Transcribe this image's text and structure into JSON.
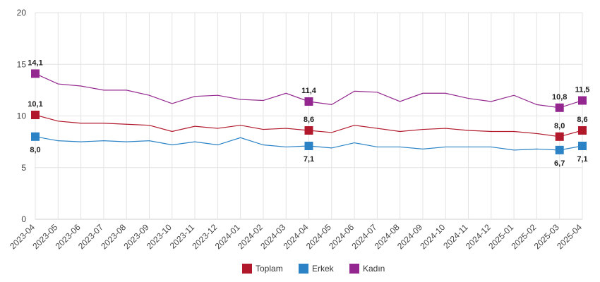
{
  "chart_data": {
    "type": "line",
    "title": "",
    "xlabel": "",
    "ylabel": "",
    "ylim": [
      0,
      20
    ],
    "yticks": [
      0,
      5,
      10,
      15,
      20
    ],
    "grid": true,
    "legend_position": "bottom-center",
    "categories": [
      "2023-04",
      "2023-05",
      "2023-06",
      "2023-07",
      "2023-08",
      "2023-09",
      "2023-10",
      "2023-11",
      "2023-12",
      "2024-01",
      "2024-02",
      "2024-03",
      "2024-04",
      "2024-05",
      "2024-06",
      "2024-07",
      "2024-08",
      "2024-09",
      "2024-10",
      "2024-11",
      "2024-12",
      "2025-01",
      "2025-02",
      "2025-03",
      "2025-04"
    ],
    "series": [
      {
        "name": "Toplam",
        "color": "#b2182b",
        "values": [
          10.1,
          9.5,
          9.3,
          9.3,
          9.2,
          9.1,
          8.5,
          9.0,
          8.8,
          9.1,
          8.7,
          8.8,
          8.6,
          8.4,
          9.1,
          8.8,
          8.5,
          8.7,
          8.8,
          8.6,
          8.5,
          8.5,
          8.3,
          8.0,
          8.6
        ],
        "labeled": [
          {
            "index": 0,
            "text": "10,1",
            "pos": "above"
          },
          {
            "index": 12,
            "text": "8,6",
            "pos": "above"
          },
          {
            "index": 23,
            "text": "8,0",
            "pos": "above"
          },
          {
            "index": 24,
            "text": "8,6",
            "pos": "above"
          }
        ]
      },
      {
        "name": "Erkek",
        "color": "#2b83c6",
        "values": [
          8.0,
          7.6,
          7.5,
          7.6,
          7.5,
          7.6,
          7.2,
          7.5,
          7.2,
          7.9,
          7.2,
          7.0,
          7.1,
          6.9,
          7.4,
          7.0,
          7.0,
          6.8,
          7.0,
          7.0,
          7.0,
          6.7,
          6.8,
          6.7,
          7.1
        ],
        "labeled": [
          {
            "index": 0,
            "text": "8,0",
            "pos": "below"
          },
          {
            "index": 12,
            "text": "7,1",
            "pos": "below"
          },
          {
            "index": 23,
            "text": "6,7",
            "pos": "below"
          },
          {
            "index": 24,
            "text": "7,1",
            "pos": "below"
          }
        ]
      },
      {
        "name": "Kadın",
        "color": "#93278f",
        "values": [
          14.1,
          13.1,
          12.9,
          12.5,
          12.5,
          12.0,
          11.2,
          11.9,
          12.0,
          11.6,
          11.5,
          12.2,
          11.4,
          11.1,
          12.4,
          12.3,
          11.4,
          12.2,
          12.2,
          11.7,
          11.4,
          12.0,
          11.1,
          10.8,
          11.5
        ],
        "labeled": [
          {
            "index": 0,
            "text": "14,1",
            "pos": "above"
          },
          {
            "index": 12,
            "text": "11,4",
            "pos": "above"
          },
          {
            "index": 23,
            "text": "10,8",
            "pos": "above"
          },
          {
            "index": 24,
            "text": "11,5",
            "pos": "above"
          }
        ]
      }
    ]
  }
}
